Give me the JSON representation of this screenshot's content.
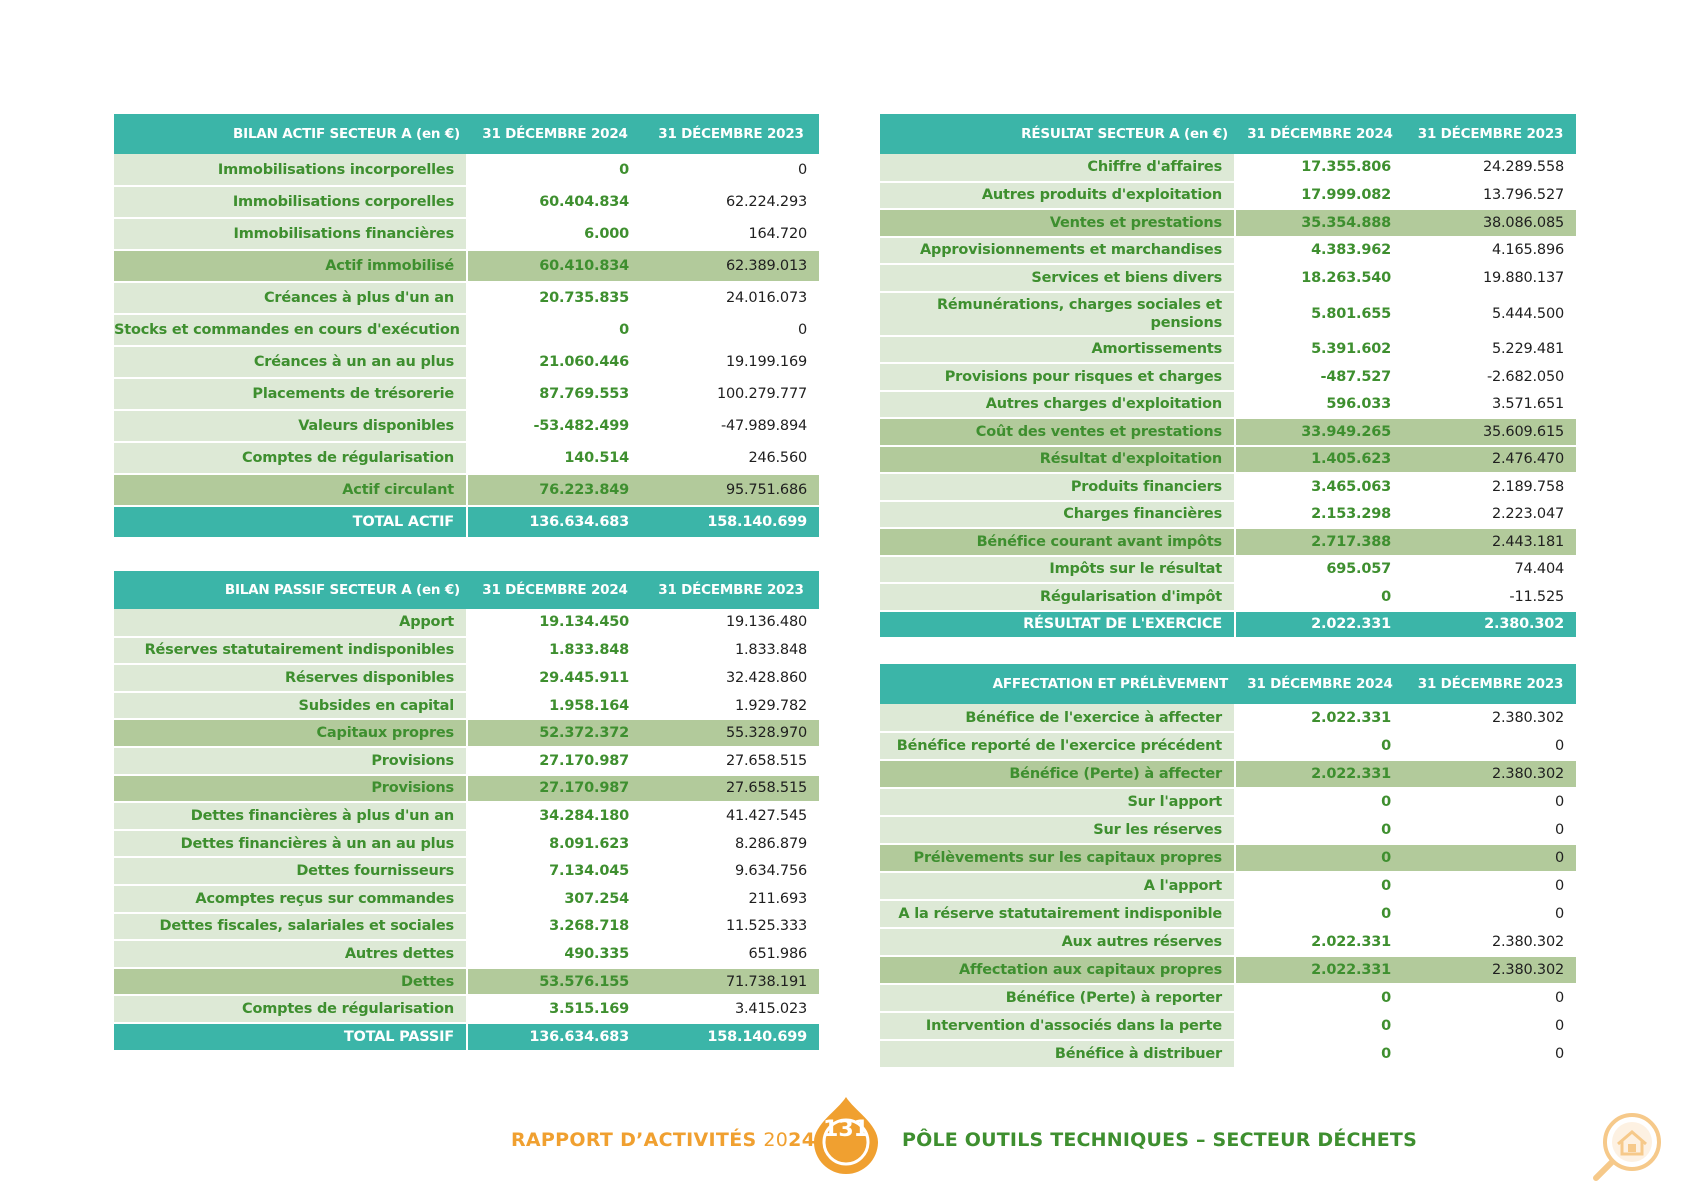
{
  "bilan_actif": {
    "header": [
      "BILAN ACTIF SECTEUR A (en €)",
      "31 DÉCEMBRE 2024",
      "31 DÉCEMBRE 2023"
    ],
    "rows": [
      {
        "label": "Immobilisations incorporelles",
        "v2024": "0",
        "v2023": "0",
        "style": "normal"
      },
      {
        "label": "Immobilisations corporelles",
        "v2024": "60.404.834",
        "v2023": "62.224.293",
        "style": "normal"
      },
      {
        "label": "Immobilisations financières",
        "v2024": "6.000",
        "v2023": "164.720",
        "style": "normal"
      },
      {
        "label": "Actif immobilisé",
        "v2024": "60.410.834",
        "v2023": "62.389.013",
        "style": "sub"
      },
      {
        "label": "Créances à plus d'un an",
        "v2024": "20.735.835",
        "v2023": "24.016.073",
        "style": "normal"
      },
      {
        "label": "Stocks et commandes en cours d'exécution",
        "v2024": "0",
        "v2023": "0",
        "style": "normal"
      },
      {
        "label": "Créances à un an au plus",
        "v2024": "21.060.446",
        "v2023": "19.199.169",
        "style": "normal"
      },
      {
        "label": "Placements de trésorerie",
        "v2024": "87.769.553",
        "v2023": "100.279.777",
        "style": "normal"
      },
      {
        "label": "Valeurs disponibles",
        "v2024": "-53.482.499",
        "v2023": "-47.989.894",
        "style": "normal"
      },
      {
        "label": "Comptes de régularisation",
        "v2024": "140.514",
        "v2023": "246.560",
        "style": "normal"
      },
      {
        "label": "Actif circulant",
        "v2024": "76.223.849",
        "v2023": "95.751.686",
        "style": "sub"
      },
      {
        "label": "TOTAL ACTIF",
        "v2024": "136.634.683",
        "v2023": "158.140.699",
        "style": "total"
      }
    ]
  },
  "bilan_passif": {
    "header": [
      "BILAN PASSIF SECTEUR A (en €)",
      "31 DÉCEMBRE 2024",
      "31 DÉCEMBRE 2023"
    ],
    "rows": [
      {
        "label": "Apport",
        "v2024": "19.134.450",
        "v2023": "19.136.480",
        "style": "normal"
      },
      {
        "label": "Réserves statutairement indisponibles",
        "v2024": "1.833.848",
        "v2023": "1.833.848",
        "style": "normal"
      },
      {
        "label": "Réserves disponibles",
        "v2024": "29.445.911",
        "v2023": "32.428.860",
        "style": "normal"
      },
      {
        "label": "Subsides en capital",
        "v2024": "1.958.164",
        "v2023": "1.929.782",
        "style": "normal"
      },
      {
        "label": "Capitaux propres",
        "v2024": "52.372.372",
        "v2023": "55.328.970",
        "style": "sub"
      },
      {
        "label": "Provisions",
        "v2024": "27.170.987",
        "v2023": "27.658.515",
        "style": "normal"
      },
      {
        "label": "Provisions",
        "v2024": "27.170.987",
        "v2023": "27.658.515",
        "style": "sub"
      },
      {
        "label": "Dettes financières à plus d'un an",
        "v2024": "34.284.180",
        "v2023": "41.427.545",
        "style": "normal"
      },
      {
        "label": "Dettes financières à un an au plus",
        "v2024": "8.091.623",
        "v2023": "8.286.879",
        "style": "normal"
      },
      {
        "label": "Dettes fournisseurs",
        "v2024": "7.134.045",
        "v2023": "9.634.756",
        "style": "normal"
      },
      {
        "label": "Acomptes reçus sur commandes",
        "v2024": "307.254",
        "v2023": "211.693",
        "style": "normal"
      },
      {
        "label": "Dettes fiscales, salariales et sociales",
        "v2024": "3.268.718",
        "v2023": "11.525.333",
        "style": "normal"
      },
      {
        "label": "Autres dettes",
        "v2024": "490.335",
        "v2023": "651.986",
        "style": "normal"
      },
      {
        "label": "Dettes",
        "v2024": "53.576.155",
        "v2023": "71.738.191",
        "style": "sub"
      },
      {
        "label": "Comptes de régularisation",
        "v2024": "3.515.169",
        "v2023": "3.415.023",
        "style": "normal"
      },
      {
        "label": "TOTAL PASSIF",
        "v2024": "136.634.683",
        "v2023": "158.140.699",
        "style": "total"
      }
    ]
  },
  "resultat": {
    "header": [
      "RÉSULTAT SECTEUR A (en €)",
      "31 DÉCEMBRE 2024",
      "31 DÉCEMBRE 2023"
    ],
    "rows": [
      {
        "label": "Chiffre d'affaires",
        "v2024": "17.355.806",
        "v2023": "24.289.558",
        "style": "normal"
      },
      {
        "label": "Autres produits d'exploitation",
        "v2024": "17.999.082",
        "v2023": "13.796.527",
        "style": "normal"
      },
      {
        "label": "Ventes et prestations",
        "v2024": "35.354.888",
        "v2023": "38.086.085",
        "style": "sub"
      },
      {
        "label": "Approvisionnements et marchandises",
        "v2024": "4.383.962",
        "v2023": "4.165.896",
        "style": "normal"
      },
      {
        "label": "Services et biens divers",
        "v2024": "18.263.540",
        "v2023": "19.880.137",
        "style": "normal"
      },
      {
        "label": "Rémunérations, charges sociales et pensions",
        "v2024": "5.801.655",
        "v2023": "5.444.500",
        "style": "normal",
        "wrap": true
      },
      {
        "label": "Amortissements",
        "v2024": "5.391.602",
        "v2023": "5.229.481",
        "style": "normal"
      },
      {
        "label": "Provisions pour risques et charges",
        "v2024": "-487.527",
        "v2023": "-2.682.050",
        "style": "normal"
      },
      {
        "label": "Autres charges d'exploitation",
        "v2024": "596.033",
        "v2023": "3.571.651",
        "style": "normal"
      },
      {
        "label": "Coût des ventes et prestations",
        "v2024": "33.949.265",
        "v2023": "35.609.615",
        "style": "sub"
      },
      {
        "label": "Résultat d'exploitation",
        "v2024": "1.405.623",
        "v2023": "2.476.470",
        "style": "sub"
      },
      {
        "label": "Produits financiers",
        "v2024": "3.465.063",
        "v2023": "2.189.758",
        "style": "normal"
      },
      {
        "label": "Charges financières",
        "v2024": "2.153.298",
        "v2023": "2.223.047",
        "style": "normal"
      },
      {
        "label": "Bénéfice courant avant impôts",
        "v2024": "2.717.388",
        "v2023": "2.443.181",
        "style": "sub"
      },
      {
        "label": "Impôts sur le résultat",
        "v2024": "695.057",
        "v2023": "74.404",
        "style": "normal"
      },
      {
        "label": "Régularisation d'impôt",
        "v2024": "0",
        "v2023": "-11.525",
        "style": "normal"
      },
      {
        "label": "RÉSULTAT DE L'EXERCICE",
        "v2024": "2.022.331",
        "v2023": "2.380.302",
        "style": "total"
      }
    ]
  },
  "affectation": {
    "header": [
      "AFFECTATION ET PRÉLÈVEMENT",
      "31 DÉCEMBRE 2024",
      "31 DÉCEMBRE 2023"
    ],
    "rows": [
      {
        "label": "Bénéfice de l'exercice à affecter",
        "v2024": "2.022.331",
        "v2023": "2.380.302",
        "style": "normal"
      },
      {
        "label": "Bénéfice reporté de l'exercice précédent",
        "v2024": "0",
        "v2023": "0",
        "style": "normal"
      },
      {
        "label": "Bénéfice (Perte) à affecter",
        "v2024": "2.022.331",
        "v2023": "2.380.302",
        "style": "sub"
      },
      {
        "label": "Sur l'apport",
        "v2024": "0",
        "v2023": "0",
        "style": "normal"
      },
      {
        "label": "Sur les réserves",
        "v2024": "0",
        "v2023": "0",
        "style": "normal"
      },
      {
        "label": "Prélèvements sur les capitaux propres",
        "v2024": "0",
        "v2023": "0",
        "style": "sub"
      },
      {
        "label": "A l'apport",
        "v2024": "0",
        "v2023": "0",
        "style": "normal"
      },
      {
        "label": "A la réserve statutairement indisponible",
        "v2024": "0",
        "v2023": "0",
        "style": "normal"
      },
      {
        "label": "Aux autres réserves",
        "v2024": "2.022.331",
        "v2023": "2.380.302",
        "style": "normal"
      },
      {
        "label": "Affectation aux capitaux propres",
        "v2024": "2.022.331",
        "v2023": "2.380.302",
        "style": "sub"
      },
      {
        "label": "Bénéfice (Perte) à reporter",
        "v2024": "0",
        "v2023": "0",
        "style": "normal"
      },
      {
        "label": "Intervention d'associés dans la perte",
        "v2024": "0",
        "v2023": "0",
        "style": "normal"
      },
      {
        "label": "Bénéfice à distribuer",
        "v2024": "0",
        "v2023": "0",
        "style": "normal"
      }
    ]
  },
  "footer": {
    "report_title": "RAPPORT D’ACTIVITÉS",
    "year_prefix": "20",
    "year_suffix": "24",
    "page_number": "131",
    "section_title": "PÔLE OUTILS TECHNIQUES – SECTEUR DÉCHETS",
    "icon": "house-search-icon"
  },
  "colors": {
    "header_teal": "#3bb5a8",
    "label_bg": "#dde9d6",
    "subtotal_bg": "#b2ca9b",
    "value_green": "#3e8f2f",
    "footer_orange": "#f0a030"
  }
}
